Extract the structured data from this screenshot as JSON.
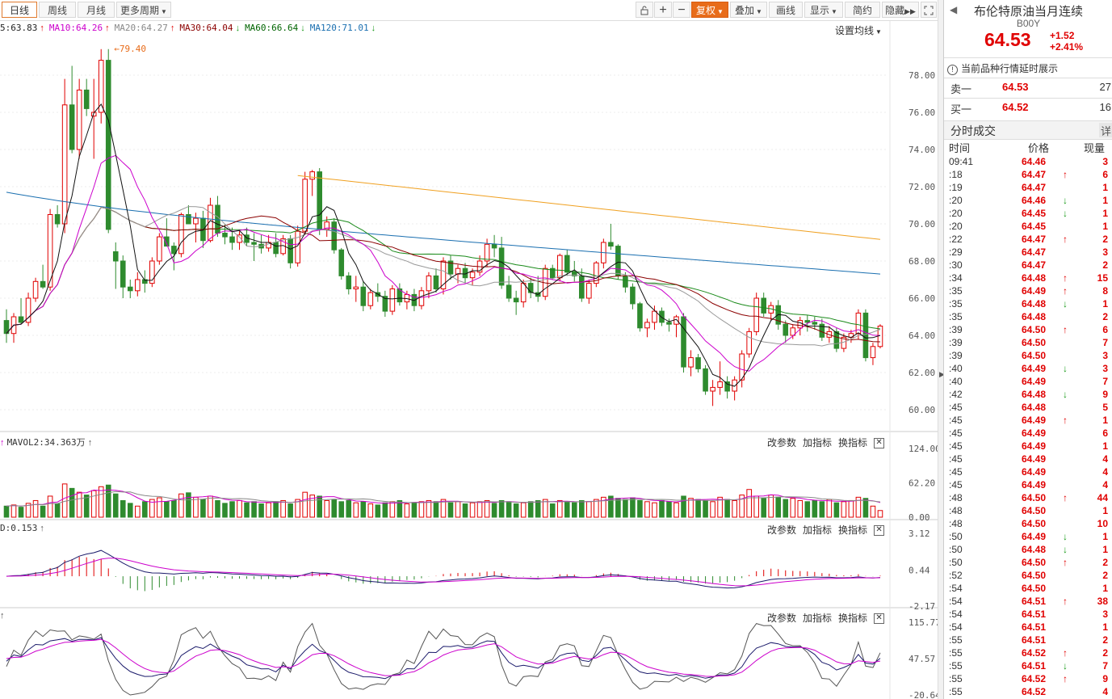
{
  "toolbar": {
    "period_tabs": [
      "日线",
      "周线",
      "月线"
    ],
    "more_periods": "更多周期",
    "icons": [
      "lock-icon",
      "zoom-in-icon",
      "zoom-out-icon"
    ],
    "adjust": "复权",
    "overlay": "叠加",
    "draw": "画线",
    "display": "显示",
    "simple": "简约",
    "hide": "隐藏"
  },
  "ma_legend": [
    {
      "text": "5:63.83",
      "arrow": "↑",
      "color": "#222222",
      "arrow_color": "#e00000"
    },
    {
      "text": "MA10:64.26",
      "arrow": "↑",
      "color": "#cc00cc",
      "arrow_color": "#e00000"
    },
    {
      "text": "MA20:64.27",
      "arrow": "↑",
      "color": "#888888",
      "arrow_color": "#e00000"
    },
    {
      "text": "MA30:64.04",
      "arrow": "↓",
      "color": "#8b0000",
      "arrow_color": "#1a9a1a"
    },
    {
      "text": "MA60:66.64",
      "arrow": "↓",
      "color": "#006400",
      "arrow_color": "#1a9a1a"
    },
    {
      "text": "MA120:71.01",
      "arrow": "↓",
      "color": "#1a6fb0",
      "arrow_color": "#1a9a1a"
    }
  ],
  "settings_label": "设置均线",
  "max_marker": "79.40",
  "price_axis": [
    "78.00",
    "76.00",
    "74.00",
    "72.00",
    "70.00",
    "68.00",
    "66.00",
    "64.00",
    "62.00",
    "60.00"
  ],
  "volume_panel": {
    "label": "MAVOL2:34.363万",
    "axis": [
      "124.00",
      "62.20",
      "0.00"
    ]
  },
  "macd_panel": {
    "label": "D:0.153",
    "axis": [
      "3.12",
      "0.44",
      "-2.17"
    ]
  },
  "kdj_panel": {
    "axis": [
      "115.77",
      "47.57",
      "-20.64"
    ]
  },
  "panel_tools": {
    "params": "改参数",
    "add": "加指标",
    "switch": "换指标"
  },
  "colors": {
    "up": "#e00000",
    "down": "#2e8b2e",
    "accent": "#e86c1a"
  },
  "quote": {
    "title": "布伦特原油当月连续",
    "code": "B00Y",
    "price": "64.53",
    "change": "+1.52",
    "change_pct": "+2.41%",
    "notice": "当前品种行情延时展示",
    "sell_label": "卖一",
    "sell_price": "64.53",
    "sell_vol": "27",
    "buy_label": "买一",
    "buy_price": "64.52",
    "buy_vol": "16"
  },
  "trades_panel": {
    "title": "分时成交",
    "detail": "详",
    "col_time": "时间",
    "col_price": "价格",
    "col_vol": "现量"
  },
  "trades": [
    {
      "time": "09:41",
      "price": "64.46",
      "dir": "",
      "vol": "3"
    },
    {
      "time": ":18",
      "price": "64.47",
      "dir": "up",
      "vol": "6"
    },
    {
      "time": ":19",
      "price": "64.47",
      "dir": "",
      "vol": "1"
    },
    {
      "time": ":20",
      "price": "64.46",
      "dir": "down",
      "vol": "1"
    },
    {
      "time": ":20",
      "price": "64.45",
      "dir": "down",
      "vol": "1"
    },
    {
      "time": ":20",
      "price": "64.45",
      "dir": "",
      "vol": "1"
    },
    {
      "time": ":22",
      "price": "64.47",
      "dir": "up",
      "vol": "2"
    },
    {
      "time": ":29",
      "price": "64.47",
      "dir": "",
      "vol": "3"
    },
    {
      "time": ":30",
      "price": "64.47",
      "dir": "",
      "vol": "2"
    },
    {
      "time": ":34",
      "price": "64.48",
      "dir": "up",
      "vol": "15"
    },
    {
      "time": ":35",
      "price": "64.49",
      "dir": "up",
      "vol": "8"
    },
    {
      "time": ":35",
      "price": "64.48",
      "dir": "down",
      "vol": "1"
    },
    {
      "time": ":35",
      "price": "64.48",
      "dir": "",
      "vol": "2"
    },
    {
      "time": ":39",
      "price": "64.50",
      "dir": "up",
      "vol": "6"
    },
    {
      "time": ":39",
      "price": "64.50",
      "dir": "",
      "vol": "7"
    },
    {
      "time": ":39",
      "price": "64.50",
      "dir": "",
      "vol": "3"
    },
    {
      "time": ":40",
      "price": "64.49",
      "dir": "down",
      "vol": "3"
    },
    {
      "time": ":40",
      "price": "64.49",
      "dir": "",
      "vol": "7"
    },
    {
      "time": ":42",
      "price": "64.48",
      "dir": "down",
      "vol": "9"
    },
    {
      "time": ":45",
      "price": "64.48",
      "dir": "",
      "vol": "5"
    },
    {
      "time": ":45",
      "price": "64.49",
      "dir": "up",
      "vol": "1"
    },
    {
      "time": ":45",
      "price": "64.49",
      "dir": "",
      "vol": "6"
    },
    {
      "time": ":45",
      "price": "64.49",
      "dir": "",
      "vol": "1"
    },
    {
      "time": ":45",
      "price": "64.49",
      "dir": "",
      "vol": "4"
    },
    {
      "time": ":45",
      "price": "64.49",
      "dir": "",
      "vol": "4"
    },
    {
      "time": ":45",
      "price": "64.49",
      "dir": "",
      "vol": "4"
    },
    {
      "time": ":48",
      "price": "64.50",
      "dir": "up",
      "vol": "44"
    },
    {
      "time": ":48",
      "price": "64.50",
      "dir": "",
      "vol": "1"
    },
    {
      "time": ":48",
      "price": "64.50",
      "dir": "",
      "vol": "10"
    },
    {
      "time": ":50",
      "price": "64.49",
      "dir": "down",
      "vol": "1"
    },
    {
      "time": ":50",
      "price": "64.48",
      "dir": "down",
      "vol": "1"
    },
    {
      "time": ":50",
      "price": "64.50",
      "dir": "up",
      "vol": "2"
    },
    {
      "time": ":52",
      "price": "64.50",
      "dir": "",
      "vol": "2"
    },
    {
      "time": ":54",
      "price": "64.50",
      "dir": "",
      "vol": "1"
    },
    {
      "time": ":54",
      "price": "64.51",
      "dir": "up",
      "vol": "38"
    },
    {
      "time": ":54",
      "price": "64.51",
      "dir": "",
      "vol": "3"
    },
    {
      "time": ":54",
      "price": "64.51",
      "dir": "",
      "vol": "1"
    },
    {
      "time": ":55",
      "price": "64.51",
      "dir": "",
      "vol": "2"
    },
    {
      "time": ":55",
      "price": "64.52",
      "dir": "up",
      "vol": "2"
    },
    {
      "time": ":55",
      "price": "64.51",
      "dir": "down",
      "vol": "7"
    },
    {
      "time": ":55",
      "price": "64.52",
      "dir": "up",
      "vol": "9"
    },
    {
      "time": ":55",
      "price": "64.52",
      "dir": "",
      "vol": "4"
    }
  ],
  "chart_data": {
    "type": "candlestick",
    "instrument": "B00Y",
    "ylim": [
      59,
      80
    ],
    "ohlc": [
      [
        64.8,
        65.4,
        63.6,
        64.1
      ],
      [
        64.1,
        65.2,
        63.6,
        65.0
      ],
      [
        65.0,
        66.0,
        64.6,
        64.7
      ],
      [
        64.7,
        66.3,
        64.5,
        66.0
      ],
      [
        66.0,
        67.1,
        65.8,
        66.9
      ],
      [
        66.9,
        67.8,
        66.5,
        66.6
      ],
      [
        66.6,
        70.8,
        66.4,
        70.5
      ],
      [
        70.5,
        71.0,
        69.8,
        70.0
      ],
      [
        70.0,
        77.8,
        69.5,
        76.4
      ],
      [
        76.4,
        78.5,
        73.8,
        74.0
      ],
      [
        74.0,
        77.8,
        73.5,
        77.2
      ],
      [
        77.2,
        77.8,
        75.8,
        76.2
      ],
      [
        75.8,
        77.8,
        73.5,
        76.0
      ],
      [
        76.0,
        79.4,
        75.4,
        78.8
      ],
      [
        78.8,
        79.4,
        69.5,
        69.7
      ],
      [
        68.5,
        69.0,
        66.5,
        68.0
      ],
      [
        68.0,
        68.3,
        66.0,
        66.6
      ],
      [
        66.6,
        67.0,
        66.0,
        66.4
      ],
      [
        66.4,
        67.4,
        66.1,
        67.0
      ],
      [
        67.0,
        67.5,
        66.3,
        66.8
      ],
      [
        66.8,
        68.2,
        66.6,
        68.0
      ],
      [
        68.0,
        69.5,
        67.8,
        69.3
      ],
      [
        69.3,
        70.3,
        68.8,
        68.8
      ],
      [
        68.8,
        69.0,
        67.5,
        68.4
      ],
      [
        68.4,
        70.6,
        68.2,
        70.5
      ],
      [
        70.5,
        71.0,
        70.0,
        70.0
      ],
      [
        70.0,
        70.6,
        69.0,
        70.3
      ],
      [
        70.3,
        70.7,
        68.7,
        69.1
      ],
      [
        69.1,
        71.4,
        69.0,
        71.0
      ],
      [
        71.0,
        71.5,
        69.3,
        69.5
      ],
      [
        69.5,
        70.0,
        68.9,
        69.3
      ],
      [
        69.3,
        69.8,
        68.6,
        69.0
      ],
      [
        69.0,
        69.6,
        68.6,
        69.4
      ],
      [
        69.4,
        69.8,
        68.8,
        69.0
      ],
      [
        69.0,
        69.5,
        68.0,
        68.9
      ],
      [
        68.9,
        69.4,
        68.4,
        68.7
      ],
      [
        68.7,
        69.4,
        68.5,
        69.0
      ],
      [
        69.0,
        69.5,
        68.2,
        68.4
      ],
      [
        68.4,
        69.4,
        68.3,
        69.2
      ],
      [
        69.2,
        69.4,
        67.6,
        67.9
      ],
      [
        67.9,
        69.9,
        67.7,
        69.6
      ],
      [
        69.6,
        72.8,
        69.4,
        72.4
      ],
      [
        72.4,
        72.9,
        71.5,
        72.8
      ],
      [
        72.8,
        73.0,
        69.4,
        69.7
      ],
      [
        69.7,
        70.4,
        69.3,
        70.1
      ],
      [
        70.1,
        70.3,
        68.4,
        68.6
      ],
      [
        68.6,
        68.7,
        67.0,
        67.2
      ],
      [
        67.2,
        67.4,
        66.2,
        66.5
      ],
      [
        66.5,
        67.2,
        65.8,
        66.6
      ],
      [
        66.6,
        66.9,
        65.3,
        65.6
      ],
      [
        65.6,
        66.5,
        65.4,
        66.3
      ],
      [
        66.3,
        66.8,
        65.8,
        66.1
      ],
      [
        66.1,
        66.4,
        65.0,
        65.3
      ],
      [
        65.3,
        66.7,
        65.1,
        66.5
      ],
      [
        66.5,
        66.8,
        65.6,
        65.8
      ],
      [
        65.8,
        66.4,
        65.4,
        66.2
      ],
      [
        66.2,
        66.5,
        65.3,
        65.6
      ],
      [
        65.6,
        66.6,
        65.4,
        66.4
      ],
      [
        66.4,
        67.4,
        66.0,
        67.2
      ],
      [
        67.2,
        67.6,
        66.3,
        66.5
      ],
      [
        66.5,
        68.2,
        66.2,
        68.0
      ],
      [
        68.0,
        68.3,
        67.0,
        67.3
      ],
      [
        67.3,
        67.8,
        66.8,
        67.6
      ],
      [
        67.6,
        67.9,
        66.8,
        67.1
      ],
      [
        67.1,
        67.6,
        66.7,
        67.4
      ],
      [
        67.4,
        68.3,
        67.2,
        68.0
      ],
      [
        68.0,
        69.2,
        67.7,
        68.9
      ],
      [
        68.9,
        69.4,
        68.2,
        68.7
      ],
      [
        68.7,
        69.3,
        66.5,
        66.7
      ],
      [
        66.7,
        67.2,
        65.8,
        66.0
      ],
      [
        66.0,
        66.4,
        65.1,
        65.8
      ],
      [
        65.8,
        67.0,
        65.5,
        66.8
      ],
      [
        66.8,
        67.1,
        66.0,
        66.3
      ],
      [
        66.3,
        67.2,
        65.8,
        66.1
      ],
      [
        66.1,
        67.8,
        65.9,
        67.6
      ],
      [
        67.6,
        67.8,
        67.0,
        67.1
      ],
      [
        67.1,
        68.4,
        66.9,
        68.3
      ],
      [
        68.3,
        68.6,
        67.2,
        67.4
      ],
      [
        67.4,
        68.0,
        66.9,
        67.2
      ],
      [
        67.2,
        67.6,
        65.8,
        66.0
      ],
      [
        66.0,
        67.0,
        65.7,
        66.8
      ],
      [
        66.8,
        68.0,
        66.6,
        67.9
      ],
      [
        67.9,
        69.2,
        67.6,
        69.0
      ],
      [
        69.0,
        70.0,
        68.6,
        68.8
      ],
      [
        68.8,
        68.9,
        67.0,
        67.2
      ],
      [
        67.2,
        67.4,
        66.3,
        66.6
      ],
      [
        66.6,
        66.8,
        65.4,
        65.7
      ],
      [
        65.7,
        65.8,
        64.2,
        64.4
      ],
      [
        64.4,
        64.9,
        63.9,
        64.7
      ],
      [
        64.7,
        65.6,
        64.3,
        65.3
      ],
      [
        65.3,
        65.5,
        64.5,
        64.7
      ],
      [
        64.7,
        64.9,
        64.2,
        64.6
      ],
      [
        64.6,
        65.1,
        63.9,
        65.0
      ],
      [
        65.0,
        65.2,
        62.0,
        62.3
      ],
      [
        62.3,
        63.2,
        61.8,
        62.8
      ],
      [
        62.8,
        63.0,
        62.0,
        62.2
      ],
      [
        62.2,
        62.4,
        60.8,
        61.0
      ],
      [
        61.0,
        61.6,
        60.2,
        61.2
      ],
      [
        61.2,
        62.6,
        60.8,
        61.5
      ],
      [
        61.5,
        61.8,
        60.6,
        61.0
      ],
      [
        61.0,
        61.8,
        60.5,
        61.6
      ],
      [
        61.6,
        63.2,
        61.2,
        63.0
      ],
      [
        63.0,
        64.4,
        62.8,
        64.2
      ],
      [
        64.2,
        66.3,
        64.0,
        66.0
      ],
      [
        66.0,
        66.3,
        65.0,
        65.2
      ],
      [
        65.2,
        65.8,
        64.8,
        65.6
      ],
      [
        65.6,
        65.9,
        64.3,
        64.6
      ],
      [
        64.6,
        64.8,
        63.6,
        64.0
      ],
      [
        64.0,
        64.6,
        63.8,
        64.4
      ],
      [
        64.4,
        65.0,
        64.0,
        64.8
      ],
      [
        64.8,
        65.1,
        64.2,
        64.7
      ],
      [
        64.7,
        65.0,
        64.3,
        64.6
      ],
      [
        64.6,
        64.9,
        63.7,
        63.9
      ],
      [
        63.9,
        64.5,
        63.6,
        64.2
      ],
      [
        64.2,
        64.4,
        63.1,
        63.3
      ],
      [
        63.3,
        64.1,
        63.1,
        63.9
      ],
      [
        63.9,
        64.3,
        63.6,
        64.1
      ],
      [
        64.1,
        65.4,
        63.8,
        65.2
      ],
      [
        65.2,
        65.4,
        62.6,
        62.8
      ],
      [
        62.8,
        63.6,
        62.4,
        63.4
      ],
      [
        63.4,
        64.6,
        63.3,
        64.5
      ]
    ],
    "volume": [
      20,
      22,
      18,
      25,
      30,
      20,
      38,
      24,
      60,
      52,
      45,
      40,
      48,
      55,
      58,
      42,
      30,
      25,
      20,
      28,
      32,
      35,
      28,
      30,
      42,
      44,
      36,
      32,
      38,
      30,
      25,
      28,
      30,
      26,
      28,
      24,
      26,
      28,
      30,
      24,
      32,
      45,
      40,
      38,
      30,
      32,
      28,
      30,
      26,
      28,
      24,
      22,
      26,
      28,
      30,
      24,
      26,
      28,
      30,
      28,
      32,
      26,
      28,
      24,
      26,
      28,
      30,
      25,
      30,
      28,
      24,
      26,
      28,
      30,
      32,
      24,
      30,
      28,
      26,
      30,
      28,
      32,
      36,
      38,
      34,
      32,
      35,
      30,
      28,
      26,
      30,
      28,
      26,
      38,
      34,
      32,
      30,
      28,
      36,
      32,
      30,
      40,
      50,
      38,
      34,
      40,
      36,
      32,
      34,
      30,
      28,
      30,
      28,
      32,
      26,
      28,
      30,
      36,
      34,
      20,
      12
    ],
    "volume_ylim": [
      0,
      124
    ],
    "macd_ylim": [
      -2.17,
      3.12
    ],
    "kdj_ylim": [
      -20.64,
      115.77
    ]
  }
}
